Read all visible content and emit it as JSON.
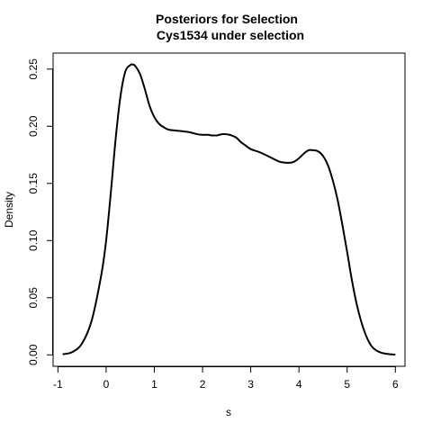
{
  "chart_data": {
    "type": "line",
    "title": "Posteriors for Selection",
    "subtitle": "Cys1534 under selection",
    "xlabel": "s",
    "ylabel": "Density",
    "xlim": [
      -1.1,
      6.2
    ],
    "ylim": [
      -0.01,
      0.264
    ],
    "xticks": [
      "-1",
      "0",
      "1",
      "2",
      "3",
      "4",
      "5",
      "6"
    ],
    "yticks": [
      "0.00",
      "0.05",
      "0.10",
      "0.15",
      "0.20",
      "0.25"
    ],
    "grid": false,
    "legend": "none",
    "line_color": "#000000",
    "series": [
      {
        "x": [
          -0.9,
          -0.7,
          -0.5,
          -0.3,
          -0.1,
          0.0,
          0.1,
          0.2,
          0.3,
          0.4,
          0.5,
          0.55,
          0.6,
          0.7,
          0.8,
          0.9,
          1.0,
          1.1,
          1.2,
          1.3,
          1.5,
          1.7,
          1.9,
          2.0,
          2.1,
          2.2,
          2.3,
          2.4,
          2.5,
          2.6,
          2.7,
          2.8,
          2.9,
          3.0,
          3.2,
          3.4,
          3.6,
          3.8,
          3.9,
          4.0,
          4.1,
          4.2,
          4.3,
          4.4,
          4.5,
          4.6,
          4.7,
          4.8,
          4.9,
          5.0,
          5.1,
          5.2,
          5.3,
          5.4,
          5.5,
          5.6,
          5.7,
          5.8,
          5.9,
          6.0
        ],
        "y": [
          0.0005,
          0.0025,
          0.01,
          0.03,
          0.07,
          0.1,
          0.143,
          0.19,
          0.227,
          0.248,
          0.2535,
          0.254,
          0.253,
          0.246,
          0.233,
          0.218,
          0.208,
          0.202,
          0.199,
          0.197,
          0.196,
          0.195,
          0.193,
          0.1925,
          0.1925,
          0.192,
          0.192,
          0.193,
          0.193,
          0.192,
          0.19,
          0.186,
          0.183,
          0.18,
          0.177,
          0.173,
          0.169,
          0.168,
          0.169,
          0.172,
          0.176,
          0.179,
          0.179,
          0.178,
          0.174,
          0.166,
          0.153,
          0.136,
          0.114,
          0.09,
          0.065,
          0.044,
          0.028,
          0.016,
          0.008,
          0.004,
          0.002,
          0.001,
          0.0005,
          0.0002
        ]
      }
    ]
  }
}
